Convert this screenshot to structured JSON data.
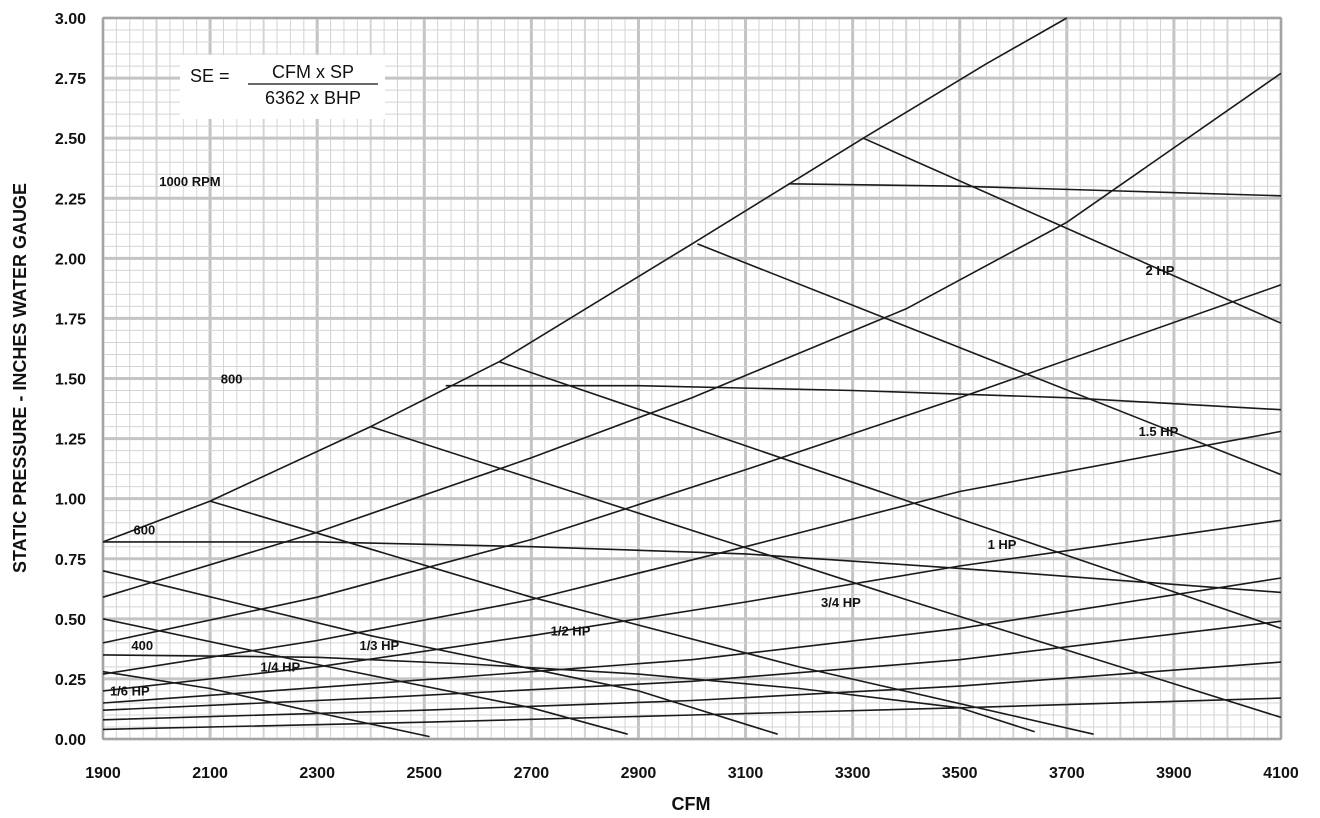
{
  "chart_data": {
    "type": "line",
    "xlabel": "CFM",
    "ylabel": "STATIC PRESSURE - INCHES WATER GAUGE",
    "xlim": [
      1900,
      4100
    ],
    "ylim": [
      0,
      3
    ],
    "x_ticks": [
      1900,
      2100,
      2300,
      2500,
      2700,
      2900,
      3100,
      3300,
      3500,
      3700,
      3900,
      4100
    ],
    "x_tick_labels": [
      "1900",
      "2100",
      "2300",
      "2500",
      "2700",
      "2900",
      "3100",
      "3300",
      "3500",
      "3700",
      "3900",
      "4100"
    ],
    "y_ticks": [
      0,
      0.25,
      0.5,
      0.75,
      1,
      1.25,
      1.5,
      1.75,
      2,
      2.25,
      2.5,
      2.75,
      3
    ],
    "y_tick_labels": [
      "0.00",
      "0.25",
      "0.50",
      "0.75",
      "1.00",
      "1.25",
      "1.50",
      "1.75",
      "2.00",
      "2.25",
      "2.50",
      "2.75",
      "3.00"
    ],
    "grid": true,
    "formula": {
      "lhs": "SE =",
      "numerator": "CFM x SP",
      "denominator": "6362 x BHP"
    },
    "series": [
      {
        "kind": "boundary",
        "points": [
          [
            1900,
            0.82
          ],
          [
            2100,
            0.99
          ],
          [
            2400,
            1.3
          ],
          [
            2640,
            1.57
          ],
          [
            3000,
            2.06
          ],
          [
            3320,
            2.5
          ],
          [
            3550,
            2.81
          ],
          [
            3700,
            3.0
          ]
        ]
      },
      {
        "kind": "system",
        "points": [
          [
            1900,
            0.59
          ],
          [
            2300,
            0.86
          ],
          [
            2700,
            1.17
          ],
          [
            3000,
            1.42
          ],
          [
            3400,
            1.79
          ],
          [
            3700,
            2.15
          ],
          [
            4100,
            2.77
          ]
        ]
      },
      {
        "kind": "system",
        "points": [
          [
            1900,
            0.4
          ],
          [
            2300,
            0.59
          ],
          [
            2700,
            0.83
          ],
          [
            3100,
            1.12
          ],
          [
            3500,
            1.42
          ],
          [
            4100,
            1.89
          ]
        ]
      },
      {
        "kind": "system",
        "points": [
          [
            1900,
            0.27
          ],
          [
            2300,
            0.41
          ],
          [
            2700,
            0.58
          ],
          [
            3100,
            0.8
          ],
          [
            3500,
            1.03
          ],
          [
            4100,
            1.28
          ]
        ]
      },
      {
        "kind": "system",
        "points": [
          [
            1900,
            0.2
          ],
          [
            2300,
            0.3
          ],
          [
            2700,
            0.43
          ],
          [
            3100,
            0.57
          ],
          [
            3500,
            0.72
          ],
          [
            4100,
            0.91
          ]
        ]
      },
      {
        "kind": "system",
        "points": [
          [
            1900,
            0.15
          ],
          [
            2400,
            0.23
          ],
          [
            3000,
            0.33
          ],
          [
            3500,
            0.46
          ],
          [
            4100,
            0.67
          ]
        ]
      },
      {
        "kind": "system",
        "points": [
          [
            1900,
            0.12
          ],
          [
            2400,
            0.17
          ],
          [
            3000,
            0.24
          ],
          [
            3500,
            0.33
          ],
          [
            4100,
            0.49
          ]
        ]
      },
      {
        "kind": "system",
        "points": [
          [
            1900,
            0.08
          ],
          [
            2500,
            0.12
          ],
          [
            3000,
            0.16
          ],
          [
            3500,
            0.22
          ],
          [
            4100,
            0.32
          ]
        ]
      },
      {
        "kind": "system",
        "points": [
          [
            1900,
            0.04
          ],
          [
            2500,
            0.07
          ],
          [
            3000,
            0.1
          ],
          [
            3500,
            0.13
          ],
          [
            4100,
            0.17
          ]
        ]
      },
      {
        "name": "1000 RPM",
        "kind": "rpm",
        "points": [
          [
            3180,
            2.31
          ],
          [
            3500,
            2.3
          ],
          [
            3800,
            2.28
          ],
          [
            4100,
            2.26
          ]
        ]
      },
      {
        "name": "800",
        "kind": "rpm",
        "points": [
          [
            2540,
            1.47
          ],
          [
            2900,
            1.47
          ],
          [
            3300,
            1.45
          ],
          [
            3700,
            1.42
          ],
          [
            4100,
            1.37
          ]
        ]
      },
      {
        "name": "600",
        "kind": "rpm",
        "points": [
          [
            1900,
            0.82
          ],
          [
            2300,
            0.82
          ],
          [
            2700,
            0.8
          ],
          [
            3100,
            0.77
          ],
          [
            3500,
            0.71
          ],
          [
            3800,
            0.66
          ],
          [
            4100,
            0.61
          ]
        ]
      },
      {
        "name": "400",
        "kind": "rpm",
        "points": [
          [
            1900,
            0.35
          ],
          [
            2300,
            0.34
          ],
          [
            2600,
            0.31
          ],
          [
            2900,
            0.27
          ],
          [
            3200,
            0.21
          ],
          [
            3500,
            0.13
          ],
          [
            3640,
            0.03
          ]
        ]
      },
      {
        "name": "2 HP",
        "kind": "hp",
        "points": [
          [
            3320,
            2.5
          ],
          [
            4100,
            1.73
          ]
        ]
      },
      {
        "name": "1.5 HP",
        "kind": "hp",
        "points": [
          [
            3010,
            2.06
          ],
          [
            4100,
            1.1
          ]
        ]
      },
      {
        "name": "1 HP",
        "kind": "hp",
        "points": [
          [
            2640,
            1.57
          ],
          [
            4100,
            0.46
          ]
        ]
      },
      {
        "name": "3/4 HP",
        "kind": "hp",
        "points": [
          [
            2400,
            1.3
          ],
          [
            3400,
            0.58
          ],
          [
            4100,
            0.09
          ]
        ]
      },
      {
        "name": "1/2 HP",
        "kind": "hp",
        "points": [
          [
            2100,
            0.99
          ],
          [
            2700,
            0.59
          ],
          [
            3200,
            0.3
          ],
          [
            3750,
            0.02
          ]
        ]
      },
      {
        "name": "1/3 HP",
        "kind": "hp",
        "points": [
          [
            1900,
            0.7
          ],
          [
            2400,
            0.43
          ],
          [
            2900,
            0.2
          ],
          [
            3160,
            0.02
          ]
        ]
      },
      {
        "name": "1/4 HP",
        "kind": "hp",
        "points": [
          [
            1900,
            0.5
          ],
          [
            2300,
            0.31
          ],
          [
            2700,
            0.13
          ],
          [
            2880,
            0.02
          ]
        ]
      },
      {
        "name": "1/6 HP",
        "kind": "hp",
        "points": [
          [
            1900,
            0.28
          ],
          [
            2100,
            0.21
          ],
          [
            2300,
            0.11
          ],
          [
            2510,
            0.01
          ]
        ]
      }
    ],
    "annotations": [
      {
        "text": "1000 RPM",
        "x": 2005,
        "y": 2.3
      },
      {
        "text": "800",
        "x": 2120,
        "y": 1.48
      },
      {
        "text": "600",
        "x": 1957,
        "y": 0.85
      },
      {
        "text": "400",
        "x": 1953,
        "y": 0.37
      },
      {
        "text": "2 HP",
        "x": 3847,
        "y": 1.93
      },
      {
        "text": "1.5 HP",
        "x": 3834,
        "y": 1.26
      },
      {
        "text": "1 HP",
        "x": 3552,
        "y": 0.79
      },
      {
        "text": "3/4 HP",
        "x": 3241,
        "y": 0.55
      },
      {
        "text": "1/2 HP",
        "x": 2736,
        "y": 0.43
      },
      {
        "text": "1/3 HP",
        "x": 2379,
        "y": 0.37
      },
      {
        "text": "1/4 HP",
        "x": 2194,
        "y": 0.28
      },
      {
        "text": "1/6 HP",
        "x": 1913,
        "y": 0.18
      }
    ]
  }
}
